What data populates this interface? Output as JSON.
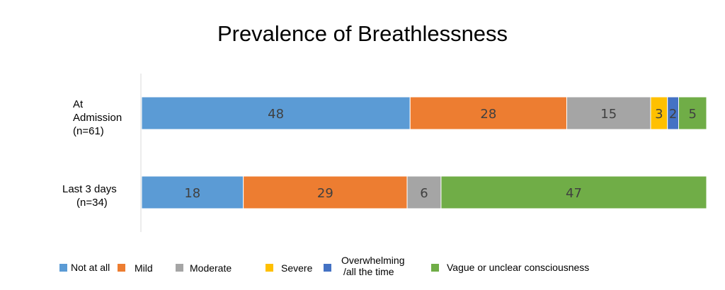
{
  "chart_data": {
    "type": "bar",
    "orientation": "horizontal",
    "stacked": true,
    "title": "Prevalence of Breathlessness",
    "categories": [
      "At Admission (n=61)",
      "Last 3 days (n=34)"
    ],
    "category_lines": [
      [
        "At",
        "Admission",
        "(n=61)"
      ],
      [
        "Last 3 days",
        "(n=34)"
      ]
    ],
    "series": [
      {
        "name": "Not at all",
        "color": "#5B9BD5",
        "values": [
          48,
          18
        ]
      },
      {
        "name": "Mild",
        "color": "#ED7D31",
        "values": [
          28,
          29
        ]
      },
      {
        "name": "Moderate",
        "color": "#A5A5A5",
        "values": [
          15,
          6
        ]
      },
      {
        "name": "Severe",
        "color": "#FFC000",
        "values": [
          3,
          0
        ]
      },
      {
        "name": "Overwhelming /all the time",
        "color": "#4472C4",
        "values": [
          2,
          0
        ],
        "legend_lines": [
          "Overwhelming",
          "/all the time"
        ]
      },
      {
        "name": "Vague or unclear consciousness",
        "color": "#70AD47",
        "values": [
          5,
          47
        ]
      }
    ],
    "xlim": [
      0,
      100
    ],
    "grid": false,
    "legend_position": "bottom"
  }
}
